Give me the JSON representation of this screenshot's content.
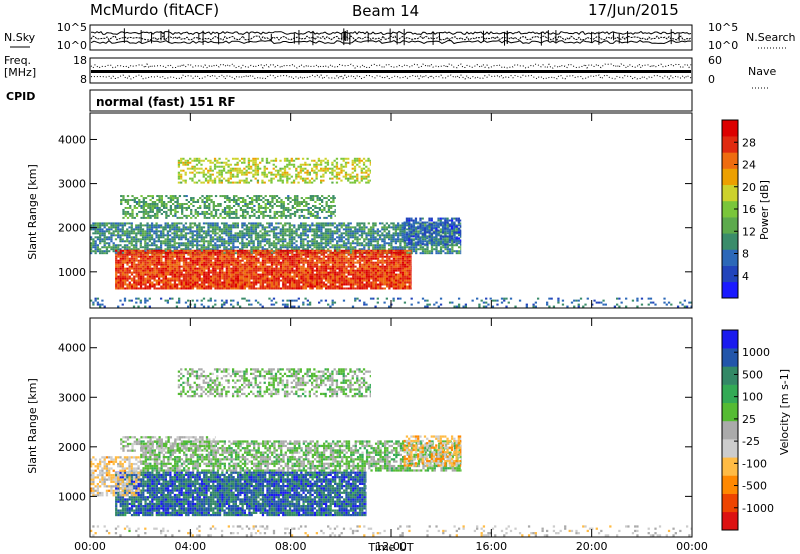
{
  "header": {
    "station": "McMurdo (fitACF)",
    "beam": "Beam 14",
    "date": "17/Jun/2015"
  },
  "left_labels": {
    "nsky": "N.Sky",
    "freq": "Freq.",
    "freq_unit": "[MHz]",
    "cpid": "CPID"
  },
  "right_labels": {
    "nsearch": "N.Search",
    "nave": "Nave"
  },
  "noise_panel": {
    "left_ticks": [
      "10^5",
      "10^0"
    ],
    "right_ticks": [
      "10^5",
      "10^0"
    ]
  },
  "freq_panel": {
    "left_ticks": [
      "18",
      "8"
    ],
    "right_ticks": [
      "60",
      "0"
    ]
  },
  "cpid_text": "normal (fast) 151 RF",
  "colors": {
    "power": [
      "#1a1aff",
      "#2244bb",
      "#2c68b8",
      "#3a8c6a",
      "#5caa4c",
      "#7ac63a",
      "#ccd22c",
      "#eca000",
      "#ee6c10",
      "#e02a10",
      "#dc0000"
    ],
    "velocity": [
      "#dd1111",
      "#ee4400",
      "#ff8800",
      "#ffbb44",
      "#cccccc",
      "#aaaaaa",
      "#55bb33",
      "#33aa55",
      "#338866",
      "#2255aa",
      "#1a1aee"
    ]
  },
  "chart_data": [
    {
      "type": "heatmap",
      "parameter": "power",
      "xlabel": "",
      "ylabel": "Slant Range [km]",
      "x_ticks": [
        "00:00",
        "04:00",
        "08:00",
        "12:00",
        "16:00",
        "20:00",
        "00:00"
      ],
      "y_ticks": [
        1000,
        2000,
        3000,
        4000
      ],
      "xlim": [
        0,
        24
      ],
      "ylim": [
        180,
        4600
      ],
      "colorbar": {
        "label": "Power [dB]",
        "ticks": [
          4,
          8,
          12,
          16,
          20,
          24,
          28
        ],
        "range": [
          0,
          32
        ]
      },
      "regions": [
        {
          "t0": 0.0,
          "t1": 14.8,
          "r0": 1400,
          "r1": 2100,
          "value": 10,
          "density": 0.75
        },
        {
          "t0": 1.0,
          "t1": 12.8,
          "r0": 600,
          "r1": 1500,
          "value": 27,
          "density": 0.92
        },
        {
          "t0": 1.2,
          "t1": 9.8,
          "r0": 2200,
          "r1": 2700,
          "value": 12,
          "density": 0.55
        },
        {
          "t0": 3.5,
          "t1": 11.2,
          "r0": 3000,
          "r1": 3550,
          "value": 18,
          "density": 0.5
        },
        {
          "t0": 12.5,
          "t1": 14.8,
          "r0": 1600,
          "r1": 2200,
          "value": 6,
          "density": 0.6
        },
        {
          "t0": 0.0,
          "t1": 24.0,
          "r0": 190,
          "r1": 380,
          "value": 8,
          "density": 0.2
        }
      ]
    },
    {
      "type": "heatmap",
      "parameter": "velocity",
      "xlabel": "Time UT",
      "ylabel": "Slant Range [km]",
      "x_ticks": [
        "00:00",
        "04:00",
        "08:00",
        "12:00",
        "16:00",
        "20:00",
        "00:00"
      ],
      "y_ticks": [
        1000,
        2000,
        3000,
        4000
      ],
      "xlim": [
        0,
        24
      ],
      "ylim": [
        180,
        4600
      ],
      "colorbar": {
        "label": "Velocity [m s-1]",
        "ticks": [
          -1000,
          -500,
          -100,
          -25,
          25,
          100,
          500,
          1000
        ],
        "range": [
          -1200,
          1200
        ]
      },
      "regions": [
        {
          "t0": 1.0,
          "t1": 11.0,
          "r0": 600,
          "r1": 1500,
          "value": 800,
          "density": 0.9
        },
        {
          "t0": 0.0,
          "t1": 2.0,
          "r0": 1000,
          "r1": 1800,
          "value": -300,
          "density": 0.65
        },
        {
          "t0": 2.0,
          "t1": 14.8,
          "r0": 1500,
          "r1": 2100,
          "value": 150,
          "density": 0.7
        },
        {
          "t0": 1.2,
          "t1": 5.0,
          "r0": 1900,
          "r1": 2200,
          "value": 0,
          "density": 0.6
        },
        {
          "t0": 12.5,
          "t1": 14.8,
          "r0": 1600,
          "r1": 2200,
          "value": -400,
          "density": 0.6
        },
        {
          "t0": 3.5,
          "t1": 11.2,
          "r0": 3000,
          "r1": 3550,
          "value": 120,
          "density": 0.5
        },
        {
          "t0": 0.0,
          "t1": 24.0,
          "r0": 190,
          "r1": 380,
          "value": -150,
          "density": 0.15
        }
      ]
    }
  ]
}
